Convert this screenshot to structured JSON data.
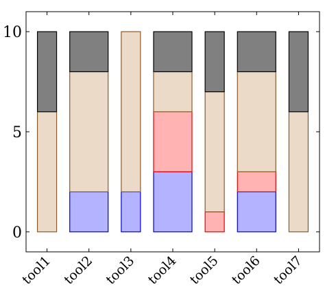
{
  "chart_data": {
    "type": "bar",
    "stacked": true,
    "categories": [
      "tool1",
      "tool2",
      "tool3",
      "tool4",
      "tool5",
      "tool6",
      "tool7"
    ],
    "series": [
      {
        "values": [
          0,
          2,
          2,
          3,
          0,
          2,
          0
        ],
        "fill": "#b3b3ff",
        "stroke": "#0000cc"
      },
      {
        "values": [
          0,
          0,
          0,
          3,
          1,
          1,
          0
        ],
        "fill": "#ffb3b3",
        "stroke": "#e60000"
      },
      {
        "values": [
          6,
          6,
          8,
          2,
          6,
          5,
          6
        ],
        "fill": "#ecdac8",
        "stroke": "#8b5a2b"
      },
      {
        "values": [
          4,
          2,
          0,
          2,
          3,
          2,
          4
        ],
        "fill": "#808080",
        "stroke": "#000000"
      }
    ],
    "widths": [
      0.5,
      1.0,
      0.5,
      1.0,
      0.5,
      1.0,
      0.5
    ],
    "ylim": [
      -1,
      11
    ],
    "yticks": [
      0,
      5,
      10
    ],
    "ytick_labels": [
      "0",
      "5",
      "10"
    ],
    "title": "",
    "xlabel": "",
    "ylabel": "",
    "grid": false,
    "legend": "none"
  }
}
